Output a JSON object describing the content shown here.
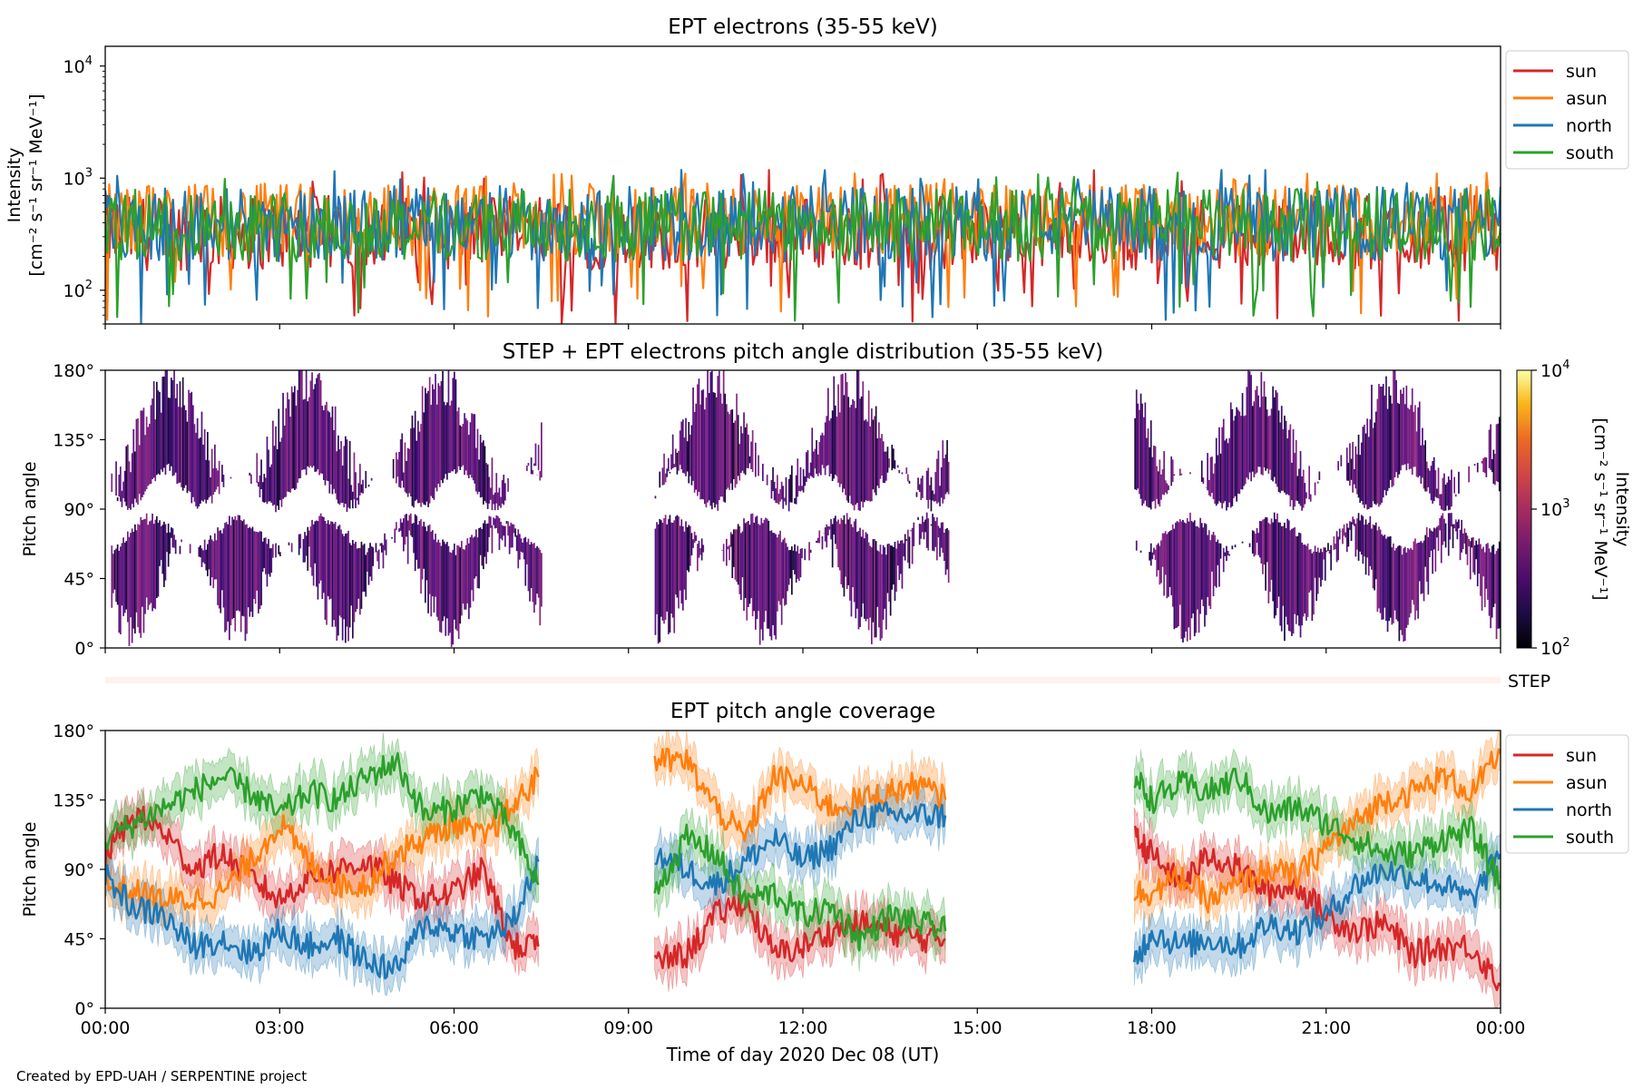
{
  "figure": {
    "footer": "Created by EPD-UAH / SERPENTINE project",
    "xlabel": "Time of day 2020 Dec 08 (UT)",
    "time_ticks": [
      "00:00",
      "03:00",
      "06:00",
      "09:00",
      "12:00",
      "15:00",
      "18:00",
      "21:00",
      "00:00"
    ]
  },
  "chart_data": [
    {
      "type": "line",
      "title": "EPT electrons (35-55 keV)",
      "ylabel_line1": "Intensity",
      "ylabel_line2": "[cm⁻² s⁻¹ sr⁻¹ MeV⁻¹]",
      "yscale": "log",
      "ylim": [
        50,
        15000
      ],
      "xlim_hours": [
        0,
        24
      ],
      "yticks": [
        {
          "value": 100,
          "base": "10",
          "exp": "2"
        },
        {
          "value": 1000,
          "base": "10",
          "exp": "3"
        },
        {
          "value": 10000,
          "base": "10",
          "exp": "4"
        }
      ],
      "legend_position": "outside-right",
      "series": [
        {
          "name": "sun",
          "color": "#d62728",
          "typical_range": [
            150,
            700
          ]
        },
        {
          "name": "asun",
          "color": "#ff7f0e",
          "typical_range": [
            200,
            900
          ]
        },
        {
          "name": "north",
          "color": "#1f77b4",
          "typical_range": [
            180,
            850
          ]
        },
        {
          "name": "south",
          "color": "#2ca02c",
          "typical_range": [
            180,
            800
          ]
        }
      ]
    },
    {
      "type": "heatmap",
      "title": "STEP + EPT electrons pitch angle distribution (35-55 keV)",
      "ylabel": "Pitch angle",
      "ylim": [
        0,
        180
      ],
      "yticks": [
        "0°",
        "45°",
        "90°",
        "135°",
        "180°"
      ],
      "data_segments_hours": [
        [
          0.1,
          7.5
        ],
        [
          9.45,
          14.5
        ],
        [
          17.7,
          24
        ]
      ],
      "colorbar": {
        "scale": "log",
        "range": [
          100,
          10000
        ],
        "ticks": [
          {
            "base": "10",
            "exp": "2"
          },
          {
            "base": "10",
            "exp": "3"
          },
          {
            "base": "10",
            "exp": "4"
          }
        ],
        "label_line1": "Intensity",
        "label_line2": "[cm⁻² s⁻¹ sr⁻¹ MeV⁻¹]"
      }
    },
    {
      "type": "bar",
      "label": "STEP",
      "color": "#fff1ec"
    },
    {
      "type": "line",
      "title": "EPT pitch angle coverage",
      "ylabel": "Pitch angle",
      "ylim": [
        0,
        180
      ],
      "yticks": [
        "0°",
        "45°",
        "90°",
        "135°",
        "180°"
      ],
      "legend_position": "outside-right",
      "series": [
        {
          "name": "sun",
          "color": "#d62728",
          "points": [
            [
              0.0,
              100
            ],
            [
              0.5,
              125
            ],
            [
              1.0,
              115
            ],
            [
              1.5,
              90
            ],
            [
              2.0,
              100
            ],
            [
              2.5,
              85
            ],
            [
              3.0,
              70
            ],
            [
              3.5,
              85
            ],
            [
              4.0,
              90
            ],
            [
              4.5,
              95
            ],
            [
              5.0,
              80
            ],
            [
              5.5,
              70
            ],
            [
              6.0,
              75
            ],
            [
              6.5,
              90
            ],
            [
              7.0,
              40
            ],
            [
              7.45,
              40
            ],
            null,
            [
              9.45,
              30
            ],
            [
              10.0,
              35
            ],
            [
              10.5,
              60
            ],
            [
              11.0,
              70
            ],
            [
              11.5,
              35
            ],
            [
              12.0,
              40
            ],
            [
              12.5,
              50
            ],
            [
              13.0,
              55
            ],
            [
              13.5,
              50
            ],
            [
              14.0,
              45
            ],
            [
              14.45,
              45
            ],
            null,
            [
              17.7,
              110
            ],
            [
              18.0,
              100
            ],
            [
              18.5,
              80
            ],
            [
              19.0,
              100
            ],
            [
              19.5,
              90
            ],
            [
              20.0,
              75
            ],
            [
              20.5,
              80
            ],
            [
              21.0,
              60
            ],
            [
              21.5,
              50
            ],
            [
              22.0,
              55
            ],
            [
              22.5,
              35
            ],
            [
              23.0,
              40
            ],
            [
              23.5,
              40
            ],
            [
              24.0,
              15
            ]
          ]
        },
        {
          "name": "asun",
          "color": "#ff7f0e",
          "points": [
            [
              0.0,
              80
            ],
            [
              0.5,
              75
            ],
            [
              1.0,
              70
            ],
            [
              1.5,
              70
            ],
            [
              2.0,
              75
            ],
            [
              2.5,
              95
            ],
            [
              3.0,
              120
            ],
            [
              3.5,
              95
            ],
            [
              4.0,
              80
            ],
            [
              4.5,
              80
            ],
            [
              5.0,
              100
            ],
            [
              5.5,
              110
            ],
            [
              6.0,
              120
            ],
            [
              6.5,
              110
            ],
            [
              7.0,
              130
            ],
            [
              7.45,
              150
            ],
            null,
            [
              9.45,
              160
            ],
            [
              10.0,
              160
            ],
            [
              10.5,
              130
            ],
            [
              11.0,
              110
            ],
            [
              11.5,
              150
            ],
            [
              12.0,
              145
            ],
            [
              12.5,
              130
            ],
            [
              13.0,
              135
            ],
            [
              13.5,
              140
            ],
            [
              14.0,
              145
            ],
            [
              14.45,
              135
            ],
            null,
            [
              17.7,
              75
            ],
            [
              18.0,
              75
            ],
            [
              18.5,
              85
            ],
            [
              19.0,
              70
            ],
            [
              19.5,
              80
            ],
            [
              20.0,
              90
            ],
            [
              20.5,
              85
            ],
            [
              21.0,
              105
            ],
            [
              21.5,
              120
            ],
            [
              22.0,
              135
            ],
            [
              22.5,
              140
            ],
            [
              23.0,
              150
            ],
            [
              23.5,
              140
            ],
            [
              24.0,
              165
            ]
          ]
        },
        {
          "name": "north",
          "color": "#1f77b4",
          "points": [
            [
              0.0,
              85
            ],
            [
              0.5,
              65
            ],
            [
              1.0,
              60
            ],
            [
              1.5,
              40
            ],
            [
              2.0,
              45
            ],
            [
              2.5,
              35
            ],
            [
              3.0,
              50
            ],
            [
              3.5,
              40
            ],
            [
              4.0,
              45
            ],
            [
              4.5,
              30
            ],
            [
              5.0,
              25
            ],
            [
              5.5,
              55
            ],
            [
              6.0,
              50
            ],
            [
              6.5,
              45
            ],
            [
              7.0,
              55
            ],
            [
              7.45,
              95
            ],
            null,
            [
              9.45,
              100
            ],
            [
              10.0,
              90
            ],
            [
              10.5,
              80
            ],
            [
              11.0,
              95
            ],
            [
              11.5,
              110
            ],
            [
              12.0,
              95
            ],
            [
              12.5,
              105
            ],
            [
              13.0,
              125
            ],
            [
              13.5,
              125
            ],
            [
              14.0,
              125
            ],
            [
              14.45,
              125
            ],
            null,
            [
              17.7,
              30
            ],
            [
              18.0,
              50
            ],
            [
              18.5,
              40
            ],
            [
              19.0,
              45
            ],
            [
              19.5,
              40
            ],
            [
              20.0,
              55
            ],
            [
              20.5,
              50
            ],
            [
              21.0,
              60
            ],
            [
              21.5,
              80
            ],
            [
              22.0,
              90
            ],
            [
              22.5,
              85
            ],
            [
              23.0,
              80
            ],
            [
              23.5,
              70
            ],
            [
              24.0,
              100
            ]
          ]
        },
        {
          "name": "south",
          "color": "#2ca02c",
          "points": [
            [
              0.0,
              110
            ],
            [
              0.5,
              120
            ],
            [
              1.0,
              130
            ],
            [
              1.5,
              140
            ],
            [
              2.0,
              150
            ],
            [
              2.5,
              140
            ],
            [
              3.0,
              125
            ],
            [
              3.5,
              140
            ],
            [
              4.0,
              135
            ],
            [
              4.5,
              150
            ],
            [
              5.0,
              160
            ],
            [
              5.5,
              125
            ],
            [
              6.0,
              130
            ],
            [
              6.5,
              140
            ],
            [
              7.0,
              115
            ],
            [
              7.45,
              80
            ],
            null,
            [
              9.45,
              75
            ],
            [
              10.0,
              110
            ],
            [
              10.5,
              100
            ],
            [
              11.0,
              70
            ],
            [
              11.5,
              75
            ],
            [
              12.0,
              60
            ],
            [
              12.5,
              65
            ],
            [
              13.0,
              45
            ],
            [
              13.5,
              60
            ],
            [
              14.0,
              55
            ],
            [
              14.45,
              50
            ],
            null,
            [
              17.7,
              150
            ],
            [
              18.0,
              135
            ],
            [
              18.5,
              145
            ],
            [
              19.0,
              140
            ],
            [
              19.5,
              150
            ],
            [
              20.0,
              125
            ],
            [
              20.5,
              130
            ],
            [
              21.0,
              120
            ],
            [
              21.5,
              110
            ],
            [
              22.0,
              100
            ],
            [
              22.5,
              100
            ],
            [
              23.0,
              110
            ],
            [
              23.5,
              115
            ],
            [
              24.0,
              80
            ]
          ]
        }
      ]
    }
  ]
}
